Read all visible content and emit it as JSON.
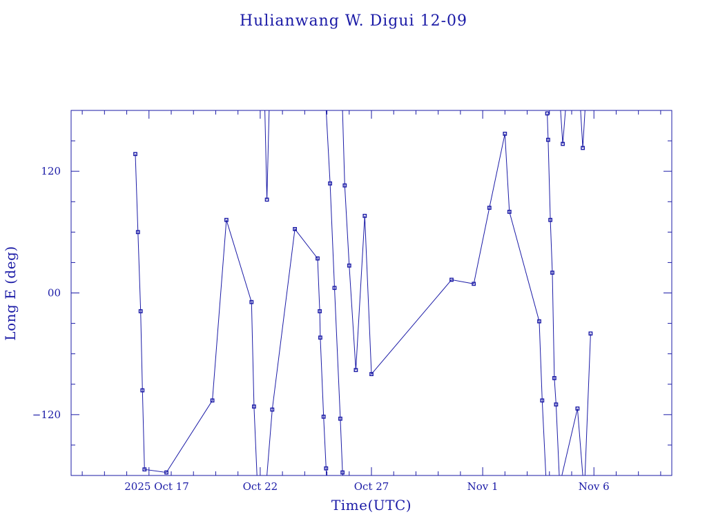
{
  "chart_data": {
    "type": "line",
    "title": "Hulianwang W. Digui 12-09",
    "xlabel": "Time(UTC)",
    "ylabel": "Long E (deg)",
    "x_unit": "day",
    "x_tick_labels": [
      {
        "x": "2025-10-17",
        "label": "2025 Oct 17"
      },
      {
        "x": "2025-10-22",
        "label": "Oct 22"
      },
      {
        "x": "2025-10-27",
        "label": "Oct 27"
      },
      {
        "x": "2025-11-01",
        "label": "Nov  1"
      },
      {
        "x": "2025-11-06",
        "label": "Nov  6"
      }
    ],
    "y_tick_labels": [
      {
        "y": 120,
        "label": "120"
      },
      {
        "y": 0,
        "label": "00"
      },
      {
        "y": -120,
        "label": "−120"
      }
    ],
    "xlim": [
      "2025-10-13T12:00",
      "2025-11-09T12:00"
    ],
    "ylim": [
      -180,
      180
    ],
    "grid": false,
    "series": [
      {
        "points": [
          {
            "t": "2025-10-16T09:14",
            "y": 137
          },
          {
            "t": "2025-10-16T12:07",
            "y": 60
          },
          {
            "t": "2025-10-16T15:00",
            "y": -18
          },
          {
            "t": "2025-10-16T16:55",
            "y": -96
          },
          {
            "t": "2025-10-16T19:12",
            "y": -174
          },
          {
            "t": "2025-10-17T18:48",
            "y": -177
          },
          {
            "t": "2025-10-19T20:24",
            "y": -106
          },
          {
            "t": "2025-10-20T11:31",
            "y": 72
          },
          {
            "t": "2025-10-21T14:38",
            "y": -9
          },
          {
            "t": "2025-10-21T17:17",
            "y": -112
          },
          {
            "t": "2025-10-21T20:29",
            "y": -180,
            "break_after": true
          },
          {
            "t": "2025-10-22T05:02",
            "y": 180
          },
          {
            "t": "2025-10-22T07:12",
            "y": 92
          },
          {
            "t": "2025-10-22T09:36",
            "y": 180,
            "break_after": true
          },
          {
            "t": "2025-10-22T07:12",
            "y": -180
          },
          {
            "t": "2025-10-22T12:58",
            "y": -115
          },
          {
            "t": "2025-10-23T13:26",
            "y": 63
          },
          {
            "t": "2025-10-24T13:55",
            "y": 34
          },
          {
            "t": "2025-10-24T16:12",
            "y": -18
          },
          {
            "t": "2025-10-24T16:48",
            "y": -44
          },
          {
            "t": "2025-10-24T20:24",
            "y": -122
          },
          {
            "t": "2025-10-24T23:02",
            "y": -173
          },
          {
            "t": "2025-10-24T23:24",
            "y": -180,
            "break_after": true
          },
          {
            "t": "2025-10-24T23:10",
            "y": 180
          },
          {
            "t": "2025-10-25T03:22",
            "y": 108
          },
          {
            "t": "2025-10-25T08:10",
            "y": 5
          },
          {
            "t": "2025-10-25T14:24",
            "y": -124
          },
          {
            "t": "2025-10-25T16:48",
            "y": -177
          },
          {
            "t": "2025-10-25T17:10",
            "y": -180,
            "break_after": true
          },
          {
            "t": "2025-10-25T16:48",
            "y": 180
          },
          {
            "t": "2025-10-25T19:12",
            "y": 106
          },
          {
            "t": "2025-10-26T00:00",
            "y": 27
          },
          {
            "t": "2025-10-26T07:12",
            "y": -76
          },
          {
            "t": "2025-10-26T16:48",
            "y": 76
          },
          {
            "t": "2025-10-27T00:00",
            "y": -80
          },
          {
            "t": "2025-10-30T14:24",
            "y": 13
          },
          {
            "t": "2025-10-31T14:24",
            "y": 9
          },
          {
            "t": "2025-11-01T07:12",
            "y": 84
          },
          {
            "t": "2025-11-02T00:00",
            "y": 157
          },
          {
            "t": "2025-11-02T04:48",
            "y": 80
          },
          {
            "t": "2025-11-03T12:58",
            "y": -28
          },
          {
            "t": "2025-11-03T16:12",
            "y": -106
          },
          {
            "t": "2025-11-03T20:10",
            "y": -180,
            "break_after": true
          },
          {
            "t": "2025-11-03T21:36",
            "y": 177
          },
          {
            "t": "2025-11-03T22:34",
            "y": 151
          },
          {
            "t": "2025-11-04T00:58",
            "y": 72
          },
          {
            "t": "2025-11-04T03:07",
            "y": 20
          },
          {
            "t": "2025-11-04T05:17",
            "y": -84
          },
          {
            "t": "2025-11-04T07:12",
            "y": -110
          },
          {
            "t": "2025-11-04T10:34",
            "y": -180
          },
          {
            "t": "2025-11-04T13:26",
            "y": -180,
            "break_after": true
          },
          {
            "t": "2025-11-04T12:00",
            "y": 180
          },
          {
            "t": "2025-11-04T14:24",
            "y": 147
          },
          {
            "t": "2025-11-04T17:17",
            "y": 180,
            "break_after": true
          },
          {
            "t": "2025-11-05T09:36",
            "y": 180
          },
          {
            "t": "2025-11-05T12:00",
            "y": 143
          },
          {
            "t": "2025-11-05T14:24",
            "y": 180,
            "break_after": true
          },
          {
            "t": "2025-11-04T13:26",
            "y": -180
          },
          {
            "t": "2025-11-05T06:14",
            "y": -114
          },
          {
            "t": "2025-11-05T12:00",
            "y": -180,
            "break_after": true
          },
          {
            "t": "2025-11-05T14:24",
            "y": -180
          },
          {
            "t": "2025-11-05T20:24",
            "y": -40
          }
        ]
      }
    ]
  }
}
